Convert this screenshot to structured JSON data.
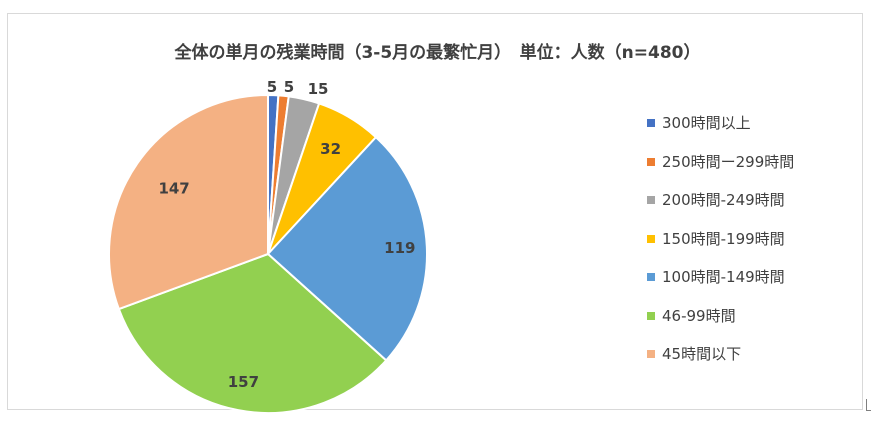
{
  "chart_data": {
    "type": "pie",
    "title": "全体の単月の残業時間（3-5月の最繁忙月）　単位：人数（n=480）",
    "categories": [
      "300時間以上",
      "250時間ー299時間",
      "200時間-249時間",
      "150時間-199時間",
      "100時間-149時間",
      "46-99時間",
      "45時間以下"
    ],
    "values": [
      5,
      5,
      15,
      32,
      119,
      157,
      147
    ],
    "colors": [
      "#4472c4",
      "#ed7d31",
      "#a5a5a5",
      "#ffc000",
      "#5b9bd5",
      "#92d050",
      "#f4b183"
    ],
    "legend_position": "right",
    "data_labels": true
  }
}
